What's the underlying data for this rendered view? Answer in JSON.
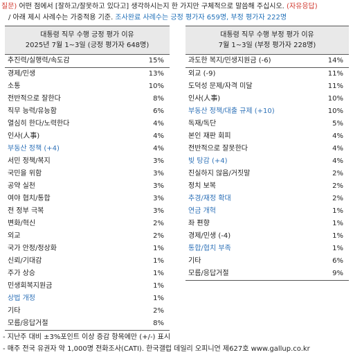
{
  "question": {
    "prefix": "질문)",
    "text": " 어떤 점에서 [잘하고/잘못하고 있다고] 생각하시는지 한 가지만 구체적으로 말씀해 주십시오.",
    "suffix": "(자유응답)",
    "note_prefix": "/ 아래 제시 사례수는 가중적용 기준. ",
    "note_highlight": "조사완료 사례수는 긍정 평가자 659명, 부정 평가자 222명"
  },
  "positive": {
    "title": "대통령 직무 수행 긍정 평가 이유",
    "subtitle": "2025년 7월 1~3일 (긍정 평가자 648명)",
    "rows": [
      {
        "label": "추진력/실행력/속도감",
        "value": "15%",
        "highlight": false
      },
      {
        "label": "경제/민생",
        "value": "13%",
        "highlight": false
      },
      {
        "label": "소통",
        "value": "10%",
        "highlight": false
      },
      {
        "label": "전반적으로 잘한다",
        "value": "8%",
        "highlight": false
      },
      {
        "label": "직무 능력/유능함",
        "value": "6%",
        "highlight": false
      },
      {
        "label": "열심히 한다/노력한다",
        "value": "4%",
        "highlight": false
      },
      {
        "label": "인사(人事)",
        "value": "4%",
        "highlight": false
      },
      {
        "label": "부동산 정책 (+4)",
        "value": "4%",
        "highlight": true
      },
      {
        "label": "서민 정책/복지",
        "value": "3%",
        "highlight": false
      },
      {
        "label": "국민을 위함",
        "value": "3%",
        "highlight": false
      },
      {
        "label": "공약 실천",
        "value": "3%",
        "highlight": false
      },
      {
        "label": "여야 협치/통합",
        "value": "3%",
        "highlight": false
      },
      {
        "label": "전 정부 극복",
        "value": "3%",
        "highlight": false
      },
      {
        "label": "변화/혁신",
        "value": "2%",
        "highlight": false
      },
      {
        "label": "외교",
        "value": "2%",
        "highlight": false
      },
      {
        "label": "국가 안정/정상화",
        "value": "1%",
        "highlight": false
      },
      {
        "label": "신뢰/기대감",
        "value": "1%",
        "highlight": false
      },
      {
        "label": "주가 상승",
        "value": "1%",
        "highlight": false
      },
      {
        "label": "민생회복지원금",
        "value": "1%",
        "highlight": false
      },
      {
        "label": "상법 개정",
        "value": "1%",
        "highlight": true
      },
      {
        "label": "기타",
        "value": "2%",
        "highlight": false
      },
      {
        "label": "모름/응답거절",
        "value": "8%",
        "highlight": false
      }
    ]
  },
  "negative": {
    "title": "대통령 직무 수행 부정 평가 이유",
    "subtitle": "7월 1~3일 (부정 평가자 228명)",
    "rows": [
      {
        "label": "과도한 복지/민생지원금 (-6)",
        "value": "14%",
        "highlight": false
      },
      {
        "label": "외교 (-9)",
        "value": "11%",
        "highlight": false
      },
      {
        "label": "도덕성 문제/자격 미달",
        "value": "11%",
        "highlight": false
      },
      {
        "label": "인사(人事)",
        "value": "10%",
        "highlight": false
      },
      {
        "label": "부동산 정책/대출 규제 (+10)",
        "value": "10%",
        "highlight": true
      },
      {
        "label": "독재/독단",
        "value": "5%",
        "highlight": false
      },
      {
        "label": "본인 재판 회피",
        "value": "4%",
        "highlight": false
      },
      {
        "label": "전반적으로 잘못한다",
        "value": "4%",
        "highlight": false
      },
      {
        "label": "빚 탕감 (+4)",
        "value": "4%",
        "highlight": true
      },
      {
        "label": "진실하지 않음/거짓말",
        "value": "2%",
        "highlight": false
      },
      {
        "label": "정치 보복",
        "value": "2%",
        "highlight": false
      },
      {
        "label": "추경/재정 확대",
        "value": "2%",
        "highlight": true
      },
      {
        "label": "연금 개혁",
        "value": "1%",
        "highlight": true
      },
      {
        "label": "좌 편향",
        "value": "1%",
        "highlight": false
      },
      {
        "label": "경제/민생 (-4)",
        "value": "1%",
        "highlight": false
      },
      {
        "label": "통합/협치 부족",
        "value": "1%",
        "highlight": true
      },
      {
        "label": "기타",
        "value": "6%",
        "highlight": false
      },
      {
        "label": "모름/응답거절",
        "value": "9%",
        "highlight": false
      }
    ]
  },
  "notes": [
    "- 지난주 대비 ±3%포인트 이상 증감 항목에만 (+/-) 표시",
    "- 매주 전국 유권자 약 1,000명 전화조사(CATI). 한국갤럽 데일리 오피니언 제627호 www.gallup.co.kr"
  ],
  "colors": {
    "accent_red": "#d0352b",
    "highlight_blue": "#2f72b8",
    "header_bg": "#e9e9e9"
  }
}
